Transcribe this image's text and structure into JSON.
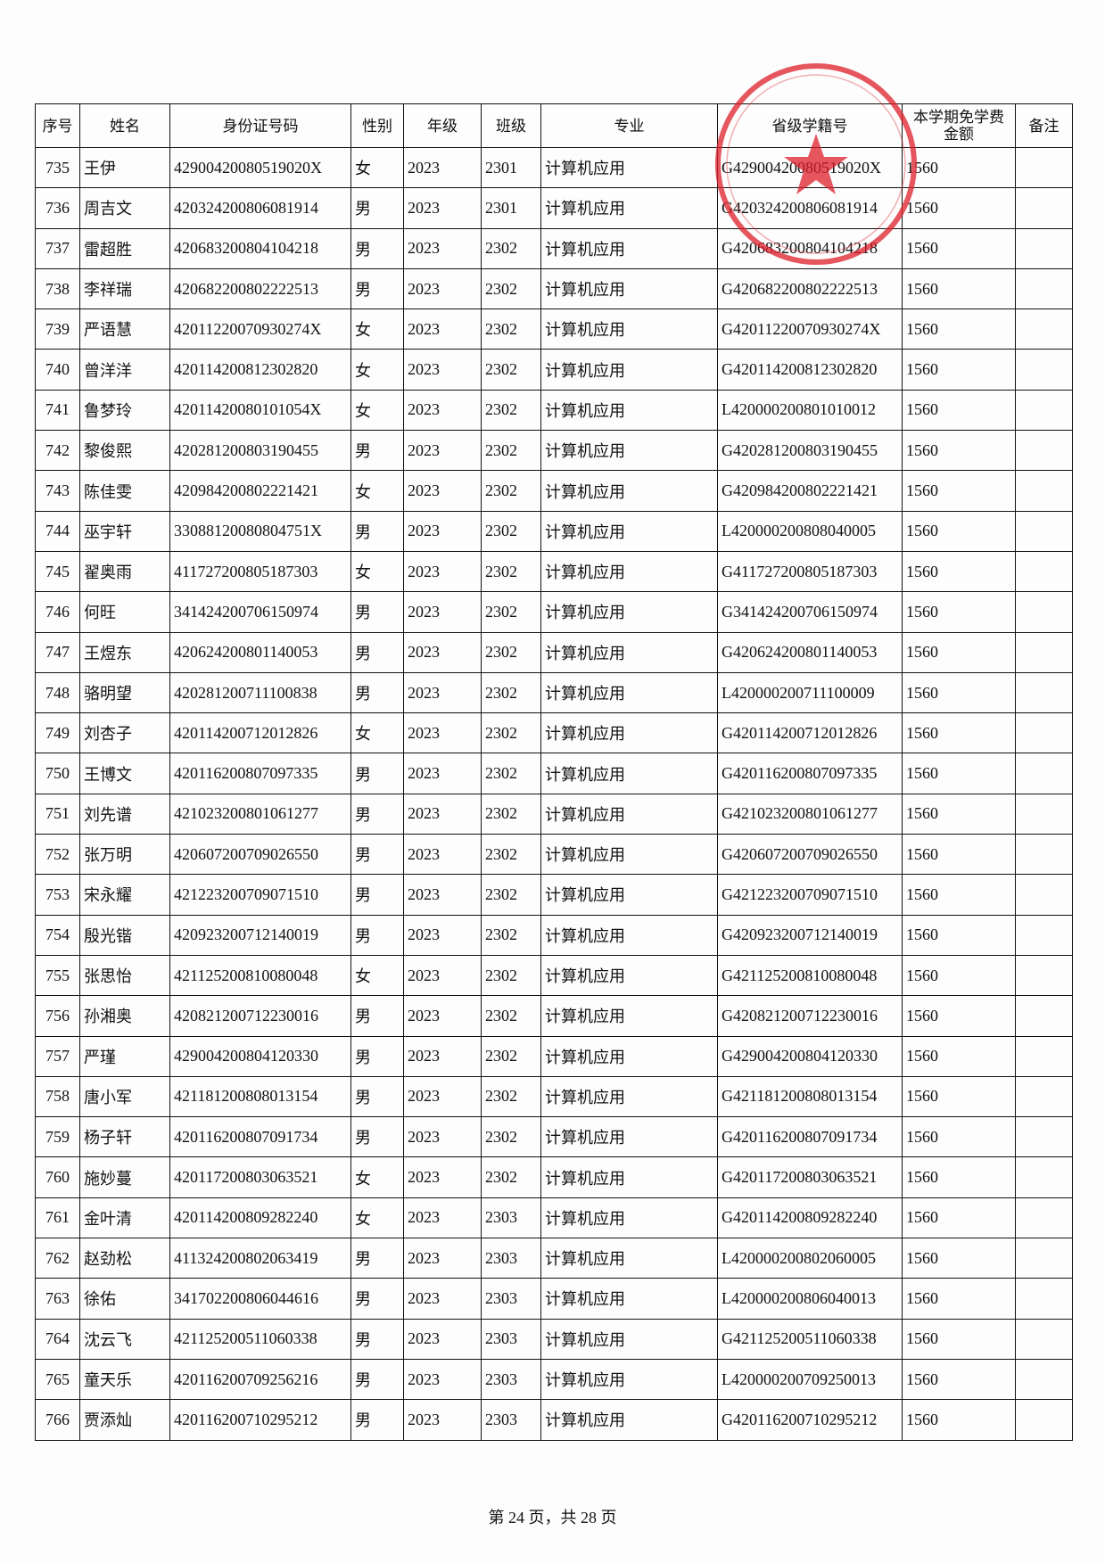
{
  "table": {
    "header": [
      "序号",
      "姓名",
      "身份证号码",
      "性别",
      "年级",
      "班级",
      "专业",
      "省级学籍号",
      [
        "本学期免学费",
        "金额"
      ],
      "备注"
    ],
    "rows": [
      [
        "735",
        "王伊",
        "42900420080519020X",
        "女",
        "2023",
        "2301",
        "计算机应用",
        "G42900420080519020X",
        "1560"
      ],
      [
        "736",
        "周吉文",
        "420324200806081914",
        "男",
        "2023",
        "2301",
        "计算机应用",
        "G420324200806081914",
        "1560"
      ],
      [
        "737",
        "雷超胜",
        "420683200804104218",
        "男",
        "2023",
        "2302",
        "计算机应用",
        "G420683200804104218",
        "1560"
      ],
      [
        "738",
        "李祥瑞",
        "420682200802222513",
        "男",
        "2023",
        "2302",
        "计算机应用",
        "G420682200802222513",
        "1560"
      ],
      [
        "739",
        "严语慧",
        "42011220070930274X",
        "女",
        "2023",
        "2302",
        "计算机应用",
        "G42011220070930274X",
        "1560"
      ],
      [
        "740",
        "曾洋洋",
        "420114200812302820",
        "女",
        "2023",
        "2302",
        "计算机应用",
        "G420114200812302820",
        "1560"
      ],
      [
        "741",
        "鲁梦玲",
        "42011420080101054X",
        "女",
        "2023",
        "2302",
        "计算机应用",
        "L420000200801010012",
        "1560"
      ],
      [
        "742",
        "黎俊熙",
        "420281200803190455",
        "男",
        "2023",
        "2302",
        "计算机应用",
        "G420281200803190455",
        "1560"
      ],
      [
        "743",
        "陈佳雯",
        "420984200802221421",
        "女",
        "2023",
        "2302",
        "计算机应用",
        "G420984200802221421",
        "1560"
      ],
      [
        "744",
        "巫宇轩",
        "33088120080804751X",
        "男",
        "2023",
        "2302",
        "计算机应用",
        "L420000200808040005",
        "1560"
      ],
      [
        "745",
        "翟奥雨",
        "411727200805187303",
        "女",
        "2023",
        "2302",
        "计算机应用",
        "G411727200805187303",
        "1560"
      ],
      [
        "746",
        "何旺",
        "341424200706150974",
        "男",
        "2023",
        "2302",
        "计算机应用",
        "G341424200706150974",
        "1560"
      ],
      [
        "747",
        "王煜东",
        "420624200801140053",
        "男",
        "2023",
        "2302",
        "计算机应用",
        "G420624200801140053",
        "1560"
      ],
      [
        "748",
        "骆明望",
        "420281200711100838",
        "男",
        "2023",
        "2302",
        "计算机应用",
        "L420000200711100009",
        "1560"
      ],
      [
        "749",
        "刘杏子",
        "420114200712012826",
        "女",
        "2023",
        "2302",
        "计算机应用",
        "G420114200712012826",
        "1560"
      ],
      [
        "750",
        "王博文",
        "420116200807097335",
        "男",
        "2023",
        "2302",
        "计算机应用",
        "G420116200807097335",
        "1560"
      ],
      [
        "751",
        "刘先谱",
        "421023200801061277",
        "男",
        "2023",
        "2302",
        "计算机应用",
        "G421023200801061277",
        "1560"
      ],
      [
        "752",
        "张万明",
        "420607200709026550",
        "男",
        "2023",
        "2302",
        "计算机应用",
        "G420607200709026550",
        "1560"
      ],
      [
        "753",
        "宋永耀",
        "421223200709071510",
        "男",
        "2023",
        "2302",
        "计算机应用",
        "G421223200709071510",
        "1560"
      ],
      [
        "754",
        "殷光锴",
        "420923200712140019",
        "男",
        "2023",
        "2302",
        "计算机应用",
        "G420923200712140019",
        "1560"
      ],
      [
        "755",
        "张思怡",
        "421125200810080048",
        "女",
        "2023",
        "2302",
        "计算机应用",
        "G421125200810080048",
        "1560"
      ],
      [
        "756",
        "孙湘奥",
        "420821200712230016",
        "男",
        "2023",
        "2302",
        "计算机应用",
        "G420821200712230016",
        "1560"
      ],
      [
        "757",
        "严瑾",
        "429004200804120330",
        "男",
        "2023",
        "2302",
        "计算机应用",
        "G429004200804120330",
        "1560"
      ],
      [
        "758",
        "唐小军",
        "421181200808013154",
        "男",
        "2023",
        "2302",
        "计算机应用",
        "G421181200808013154",
        "1560"
      ],
      [
        "759",
        "杨子轩",
        "420116200807091734",
        "男",
        "2023",
        "2302",
        "计算机应用",
        "G420116200807091734",
        "1560"
      ],
      [
        "760",
        "施妙蔓",
        "420117200803063521",
        "女",
        "2023",
        "2302",
        "计算机应用",
        "G420117200803063521",
        "1560"
      ],
      [
        "761",
        "金叶清",
        "420114200809282240",
        "女",
        "2023",
        "2303",
        "计算机应用",
        "G420114200809282240",
        "1560"
      ],
      [
        "762",
        "赵劲松",
        "411324200802063419",
        "男",
        "2023",
        "2303",
        "计算机应用",
        "L420000200802060005",
        "1560"
      ],
      [
        "763",
        "徐佑",
        "341702200806044616",
        "男",
        "2023",
        "2303",
        "计算机应用",
        "L420000200806040013",
        "1560"
      ],
      [
        "764",
        "沈云飞",
        "421125200511060338",
        "男",
        "2023",
        "2303",
        "计算机应用",
        "G421125200511060338",
        "1560"
      ],
      [
        "765",
        "童天乐",
        "420116200709256216",
        "男",
        "2023",
        "2303",
        "计算机应用",
        "L420000200709250013",
        "1560"
      ],
      [
        "766",
        "贾添灿",
        "420116200710295212",
        "男",
        "2023",
        "2303",
        "计算机应用",
        "G420116200710295212",
        "1560"
      ]
    ]
  },
  "footer": "第 24 页，共 28 页"
}
